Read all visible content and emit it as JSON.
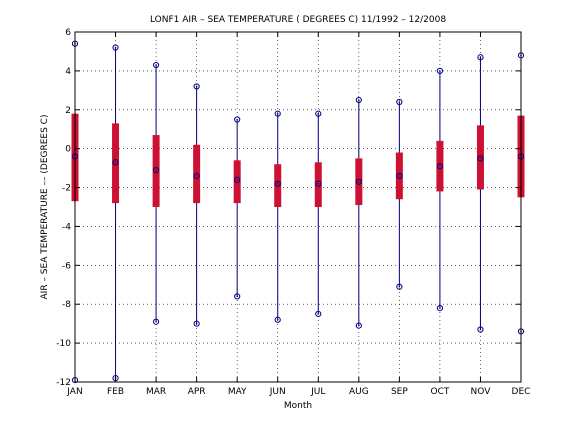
{
  "chart_data": {
    "type": "box",
    "title": "LONF1  AIR – SEA TEMPERATURE ( DEGREES C) 11/1992 – 12/2008",
    "xlabel": "Month",
    "ylabel": "AIR – SEA TEMPERATURE –– (DEGREES C)",
    "categories": [
      "JAN",
      "FEB",
      "MAR",
      "APR",
      "MAY",
      "JUN",
      "JUL",
      "AUG",
      "SEP",
      "OCT",
      "NOV",
      "DEC"
    ],
    "ylim": [
      -12,
      6
    ],
    "yticks": [
      -12,
      -10,
      -8,
      -6,
      -4,
      -2,
      0,
      2,
      4,
      6
    ],
    "grid": true,
    "series": [
      {
        "stat": "max",
        "values": [
          5.4,
          5.2,
          4.3,
          3.2,
          1.5,
          1.8,
          1.8,
          2.5,
          2.4,
          4.0,
          4.7,
          4.8
        ]
      },
      {
        "stat": "q3",
        "values": [
          1.8,
          1.3,
          0.7,
          0.2,
          -0.6,
          -0.8,
          -0.7,
          -0.5,
          -0.2,
          0.4,
          1.2,
          1.7
        ]
      },
      {
        "stat": "median",
        "values": [
          -0.4,
          -0.7,
          -1.1,
          -1.4,
          -1.6,
          -1.8,
          -1.8,
          -1.7,
          -1.4,
          -0.9,
          -0.5,
          -0.4
        ]
      },
      {
        "stat": "q1",
        "values": [
          -2.7,
          -2.8,
          -3.0,
          -2.8,
          -2.8,
          -3.0,
          -3.0,
          -2.9,
          -2.6,
          -2.2,
          -2.1,
          -2.5
        ]
      },
      {
        "stat": "min",
        "values": [
          -11.9,
          -11.8,
          -8.9,
          -9.0,
          -7.6,
          -8.8,
          -8.5,
          -9.1,
          -7.1,
          -8.2,
          -9.3,
          -9.4
        ]
      }
    ]
  },
  "colors": {
    "whisker": "#000080",
    "box": "#cc1133",
    "marker": "#000080",
    "grid": "#000000"
  }
}
